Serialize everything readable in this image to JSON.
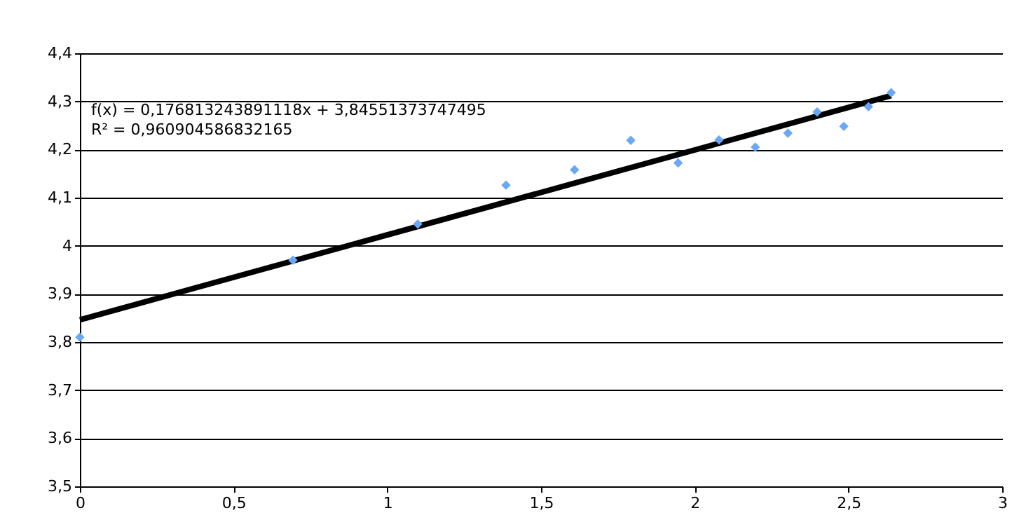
{
  "chart_data": {
    "type": "scatter",
    "xlim": [
      0,
      3
    ],
    "xticks": [
      0,
      {
        "value": 0.5,
        "label": "0,5"
      },
      1,
      {
        "value": 1.5,
        "label": "1,5"
      },
      2,
      {
        "value": 2.5,
        "label": "2,5"
      },
      3
    ],
    "ylim": [
      3.5,
      4.4
    ],
    "yticks": [
      {
        "value": 3.5,
        "label": "3,5"
      },
      {
        "value": 3.6,
        "label": "3,6"
      },
      {
        "value": 3.7,
        "label": "3,7"
      },
      {
        "value": 3.8,
        "label": "3,8"
      },
      {
        "value": 3.9,
        "label": "3,9"
      },
      4,
      {
        "value": 4.1,
        "label": "4,1"
      },
      {
        "value": 4.2,
        "label": "4,2"
      },
      {
        "value": 4.3,
        "label": "4,3"
      },
      {
        "value": 4.4,
        "label": "4,4"
      }
    ],
    "grid": "y",
    "series": [
      {
        "type": "scatter",
        "color": "#6aa8f7",
        "marker": "diamond",
        "x": [
          0,
          0.693,
          1.099,
          1.386,
          1.609,
          1.792,
          1.946,
          2.079,
          2.197,
          2.303,
          2.398,
          2.485,
          2.565,
          2.639
        ],
        "values": [
          3.81,
          3.97,
          4.045,
          4.126,
          4.158,
          4.219,
          4.172,
          4.22,
          4.205,
          4.234,
          4.278,
          4.248,
          4.289,
          4.318
        ]
      },
      {
        "type": "line",
        "color": "#000000",
        "marker": "none",
        "x": [
          0,
          2.639
        ],
        "values": [
          3.846,
          4.312
        ]
      }
    ],
    "annotations": [
      "f(x) = 0,176813243891118x + 3,84551373747495",
      "R² = 0,960904586832165"
    ]
  }
}
